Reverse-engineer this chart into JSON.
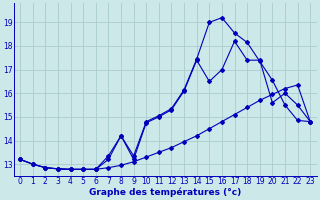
{
  "xlabel": "Graphe des températures (°c)",
  "bg_color": "#cce8e8",
  "line_color": "#0000bb",
  "grid_color": "#aacccc",
  "xlim": [
    -0.5,
    23.5
  ],
  "ylim": [
    12.5,
    19.8
  ],
  "yticks": [
    13,
    14,
    15,
    16,
    17,
    18,
    19
  ],
  "xticks": [
    0,
    1,
    2,
    3,
    4,
    5,
    6,
    7,
    8,
    9,
    10,
    11,
    12,
    13,
    14,
    15,
    16,
    17,
    18,
    19,
    20,
    21,
    22,
    23
  ],
  "series1_x": [
    0,
    1,
    2,
    3,
    4,
    5,
    6,
    7,
    8,
    9,
    10,
    11,
    12,
    13,
    14,
    15,
    16,
    17,
    18,
    19,
    20,
    21,
    22,
    23
  ],
  "series1_y": [
    13.2,
    13.0,
    12.85,
    12.8,
    12.78,
    12.78,
    12.78,
    13.35,
    14.2,
    13.35,
    14.8,
    15.05,
    15.35,
    16.15,
    17.45,
    19.0,
    19.2,
    18.55,
    18.15,
    17.35,
    16.55,
    15.5,
    14.85,
    14.8
  ],
  "series2_x": [
    0,
    1,
    2,
    3,
    4,
    5,
    6,
    7,
    8,
    9,
    10,
    11,
    12,
    13,
    14,
    15,
    16,
    17,
    18,
    19,
    20,
    21,
    22,
    23
  ],
  "series2_y": [
    13.2,
    13.0,
    12.85,
    12.8,
    12.78,
    12.78,
    12.78,
    13.2,
    14.2,
    13.2,
    14.75,
    15.0,
    15.3,
    16.1,
    17.4,
    16.5,
    17.0,
    18.2,
    17.4,
    17.4,
    15.6,
    16.0,
    15.5,
    14.8
  ],
  "series3_x": [
    0,
    1,
    2,
    3,
    4,
    5,
    6,
    7,
    8,
    9,
    10,
    11,
    12,
    13,
    14,
    15,
    16,
    17,
    18,
    19,
    20,
    21,
    22,
    23
  ],
  "series3_y": [
    13.2,
    13.0,
    12.85,
    12.8,
    12.78,
    12.78,
    12.78,
    12.85,
    12.95,
    13.1,
    13.3,
    13.5,
    13.7,
    13.95,
    14.2,
    14.5,
    14.8,
    15.1,
    15.4,
    15.7,
    15.95,
    16.2,
    16.35,
    14.8
  ]
}
